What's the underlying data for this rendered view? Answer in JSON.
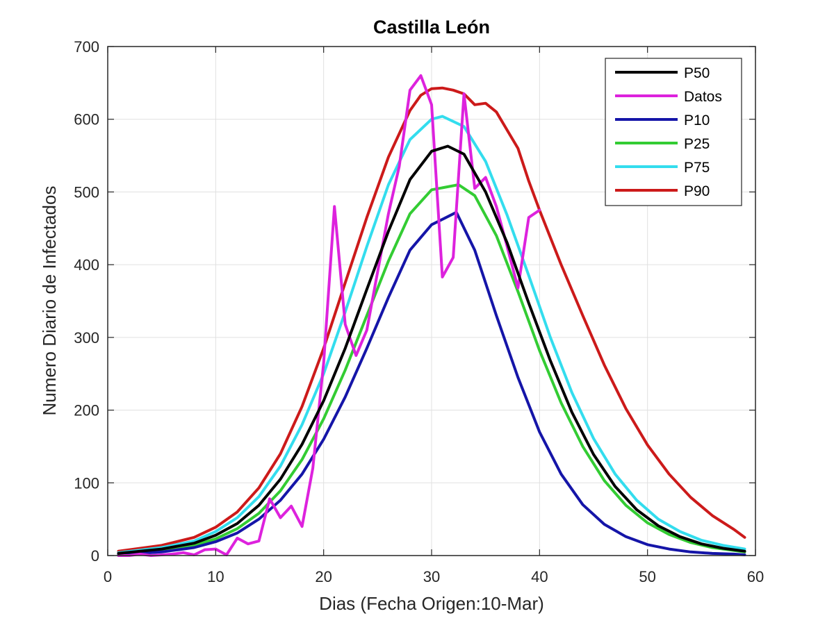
{
  "chart_data": {
    "type": "line",
    "title": "Castilla León",
    "xlabel": "Dias (Fecha Origen:10-Mar)",
    "ylabel": "Numero Diario de Infectados",
    "xlim": [
      0,
      60
    ],
    "ylim": [
      0,
      700
    ],
    "xticks": [
      0,
      10,
      20,
      30,
      40,
      50,
      60
    ],
    "yticks": [
      0,
      100,
      200,
      300,
      400,
      500,
      600,
      700
    ],
    "grid": true,
    "legend_position": "top-right",
    "series": [
      {
        "name": "P50",
        "color": "#000000",
        "x": [
          1,
          5,
          8,
          10,
          12,
          14,
          16,
          18,
          20,
          22,
          24,
          26,
          28,
          30,
          31.5,
          33,
          35,
          37,
          39,
          41,
          43,
          45,
          47,
          49,
          51,
          53,
          55,
          57,
          59
        ],
        "y": [
          3,
          9,
          17,
          28,
          44,
          69,
          105,
          153,
          213,
          285,
          366,
          446,
          517,
          556,
          563,
          552,
          500,
          430,
          347,
          268,
          197,
          139,
          95,
          63,
          41,
          26,
          16,
          10,
          6
        ]
      },
      {
        "name": "Datos",
        "color": "#dd22dd",
        "x": [
          1,
          2,
          3,
          4,
          5,
          6,
          7,
          8,
          9,
          10,
          11,
          12,
          13,
          14,
          15,
          16,
          17,
          18,
          19,
          20,
          21,
          22,
          23,
          24,
          25,
          26,
          27,
          28,
          29,
          30,
          31,
          32,
          33,
          34,
          35,
          36,
          37,
          38,
          39,
          40
        ],
        "y": [
          0,
          0,
          2,
          0,
          1,
          2,
          4,
          1,
          8,
          9,
          1,
          24,
          16,
          20,
          78,
          52,
          68,
          40,
          120,
          265,
          480,
          318,
          275,
          310,
          390,
          470,
          535,
          640,
          660,
          620,
          383,
          410,
          635,
          505,
          520,
          480,
          425,
          368,
          465,
          475
        ]
      },
      {
        "name": "P10",
        "color": "#1515a8",
        "x": [
          1,
          5,
          8,
          10,
          12,
          14,
          16,
          18,
          20,
          22,
          24,
          26,
          28,
          30,
          32.3,
          34,
          36,
          38,
          40,
          42,
          44,
          46,
          48,
          50,
          52,
          54,
          56,
          58,
          59
        ],
        "y": [
          1,
          5,
          11,
          19,
          31,
          50,
          76,
          112,
          160,
          218,
          285,
          355,
          420,
          455,
          472,
          420,
          330,
          245,
          170,
          112,
          70,
          43,
          26,
          15,
          9,
          5,
          3,
          2,
          1
        ]
      },
      {
        "name": "P25",
        "color": "#33cc33",
        "x": [
          1,
          5,
          8,
          10,
          12,
          14,
          16,
          18,
          20,
          22,
          24,
          26,
          28,
          30,
          32.5,
          34,
          36,
          38,
          40,
          42,
          44,
          46,
          48,
          50,
          52,
          54,
          56,
          58,
          59
        ],
        "y": [
          2,
          7,
          14,
          23,
          37,
          58,
          89,
          132,
          188,
          255,
          330,
          405,
          470,
          503,
          510,
          495,
          440,
          363,
          282,
          210,
          150,
          103,
          69,
          45,
          29,
          18,
          11,
          7,
          5
        ]
      },
      {
        "name": "P75",
        "color": "#33ddee",
        "x": [
          1,
          5,
          8,
          10,
          12,
          14,
          16,
          18,
          20,
          22,
          24,
          26,
          28,
          30,
          31,
          33,
          35,
          37,
          39,
          41,
          43,
          45,
          47,
          49,
          51,
          53,
          55,
          57,
          59
        ],
        "y": [
          4,
          11,
          20,
          33,
          52,
          81,
          123,
          180,
          250,
          335,
          425,
          510,
          572,
          600,
          604,
          590,
          542,
          468,
          385,
          300,
          224,
          161,
          112,
          76,
          50,
          33,
          21,
          14,
          9
        ]
      },
      {
        "name": "P90",
        "color": "#cc1a1a",
        "x": [
          1,
          5,
          8,
          10,
          12,
          14,
          16,
          18,
          20,
          22,
          24,
          26,
          28,
          29,
          30,
          31,
          32,
          33,
          34,
          35,
          36,
          37,
          38,
          39,
          40,
          42,
          44,
          46,
          48,
          50,
          52,
          54,
          56,
          58,
          59
        ],
        "y": [
          6,
          14,
          25,
          39,
          60,
          93,
          140,
          205,
          285,
          375,
          465,
          548,
          612,
          633,
          642,
          643,
          640,
          635,
          620,
          622,
          610,
          585,
          560,
          515,
          475,
          400,
          330,
          262,
          202,
          152,
          112,
          80,
          55,
          36,
          25
        ]
      }
    ]
  }
}
